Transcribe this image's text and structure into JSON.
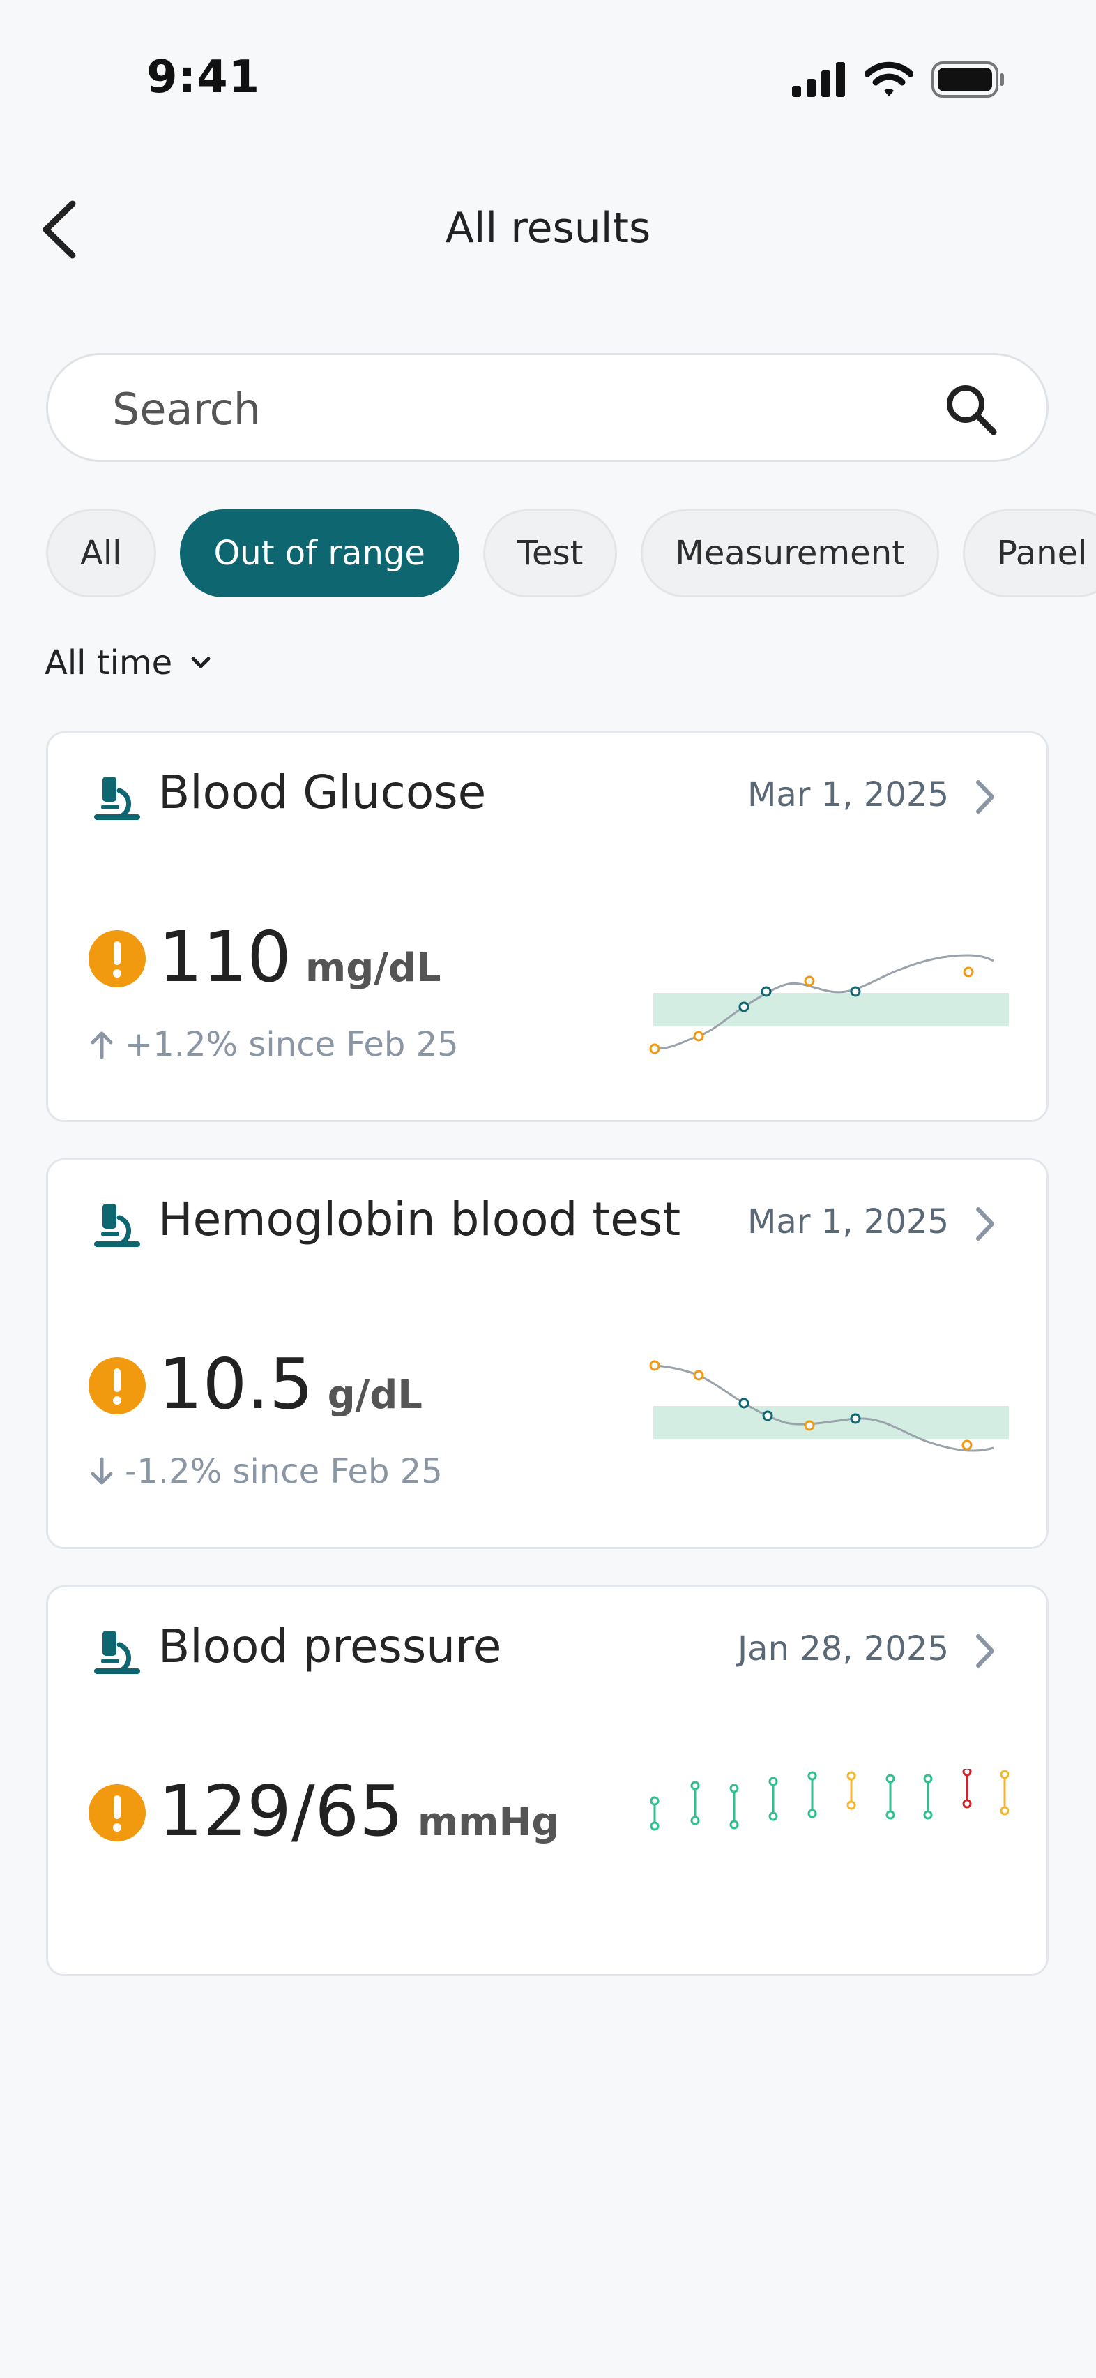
{
  "status_bar": {
    "time": "9:41"
  },
  "header": {
    "title": "All results"
  },
  "search": {
    "placeholder": "Search"
  },
  "filters": {
    "chips": [
      {
        "label": "All",
        "active": false
      },
      {
        "label": "Out of range",
        "active": true
      },
      {
        "label": "Test",
        "active": false
      },
      {
        "label": "Measurement",
        "active": false
      },
      {
        "label": "Panel",
        "active": false
      }
    ],
    "time_range": "All time"
  },
  "colors": {
    "accent": "#0e6670",
    "warning": "#f29a0f",
    "range_band": "#d3ede2",
    "trend_line": "#9aa3ab",
    "bp_normal": "#2fbf8f",
    "bp_elevated": "#f5b62e",
    "bp_high": "#d0242c"
  },
  "results": [
    {
      "icon": "microscope-icon",
      "title": "Blood Glucose",
      "date": "Mar 1, 2025",
      "value": "110",
      "unit": "mg/dL",
      "trend_text": "+1.2% since Feb 25",
      "trend_direction": "up"
    },
    {
      "icon": "microscope-icon",
      "title": "Hemoglobin blood test",
      "date": "Mar 1, 2025",
      "value": "10.5",
      "unit": "g/dL",
      "trend_text": "-1.2% since Feb 25",
      "trend_direction": "down"
    },
    {
      "icon": "microscope-icon",
      "title": "Blood pressure",
      "date": "Jan 28, 2025",
      "value": "129/65",
      "unit": "mmHg",
      "trend_text": "",
      "trend_direction": "none"
    }
  ]
}
